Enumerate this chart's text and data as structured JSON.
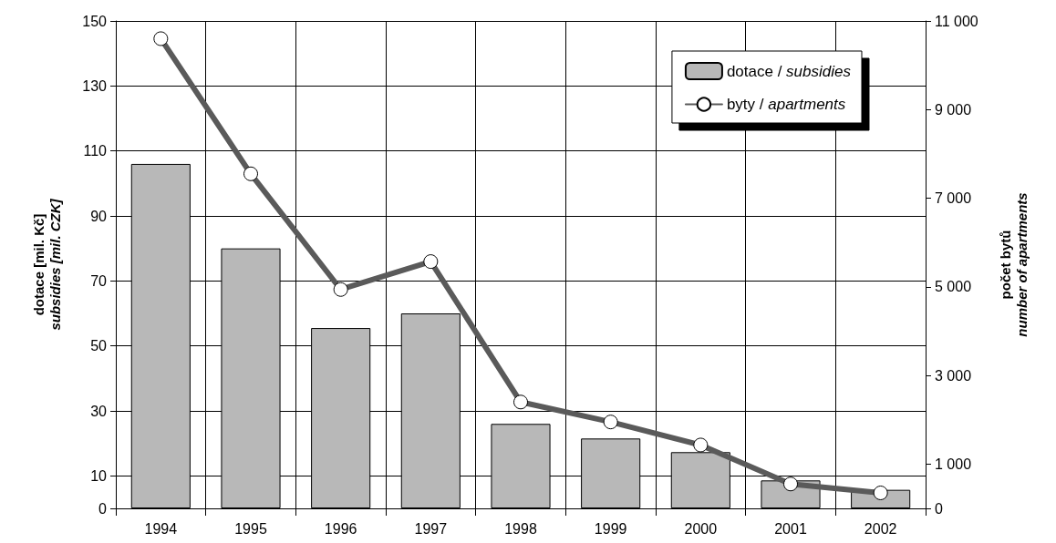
{
  "chart_data": {
    "type": "bar",
    "ylabel": "dotace [mil. Kč]\nsubsidies [mil. CZK]",
    "y2label": "počet bytů\nnumber of apartments",
    "categories": [
      "1994",
      "1995",
      "1996",
      "1997",
      "1998",
      "1999",
      "2000",
      "2001",
      "2002"
    ],
    "series": [
      {
        "name": "dotace / subsidies",
        "color": "#b8b8b8",
        "values": [
          106,
          80,
          55.5,
          60,
          26,
          21.5,
          17.3,
          8.6,
          5.7
        ]
      },
      {
        "name": "byty / apartments",
        "type": "line",
        "axis": "y2",
        "color": "#5a5a5a",
        "marker": "circle",
        "values": [
          10600,
          7550,
          4940,
          5570,
          2400,
          1950,
          1430,
          550,
          350
        ]
      }
    ],
    "ylim": [
      0,
      150
    ],
    "yticks": [
      0,
      10,
      30,
      50,
      70,
      90,
      110,
      130,
      150
    ],
    "y2lim": [
      0,
      11000
    ],
    "y2ticks": [
      0,
      {
        "value": 1000,
        "label": "1 000"
      },
      {
        "value": 3000,
        "label": "3 000"
      },
      {
        "value": 5000,
        "label": "5 000"
      },
      {
        "value": 7000,
        "label": "7 000"
      },
      {
        "value": 9000,
        "label": "9 000"
      },
      {
        "value": 11000,
        "label": "11 000"
      }
    ],
    "grid": true,
    "legend": "top right"
  }
}
